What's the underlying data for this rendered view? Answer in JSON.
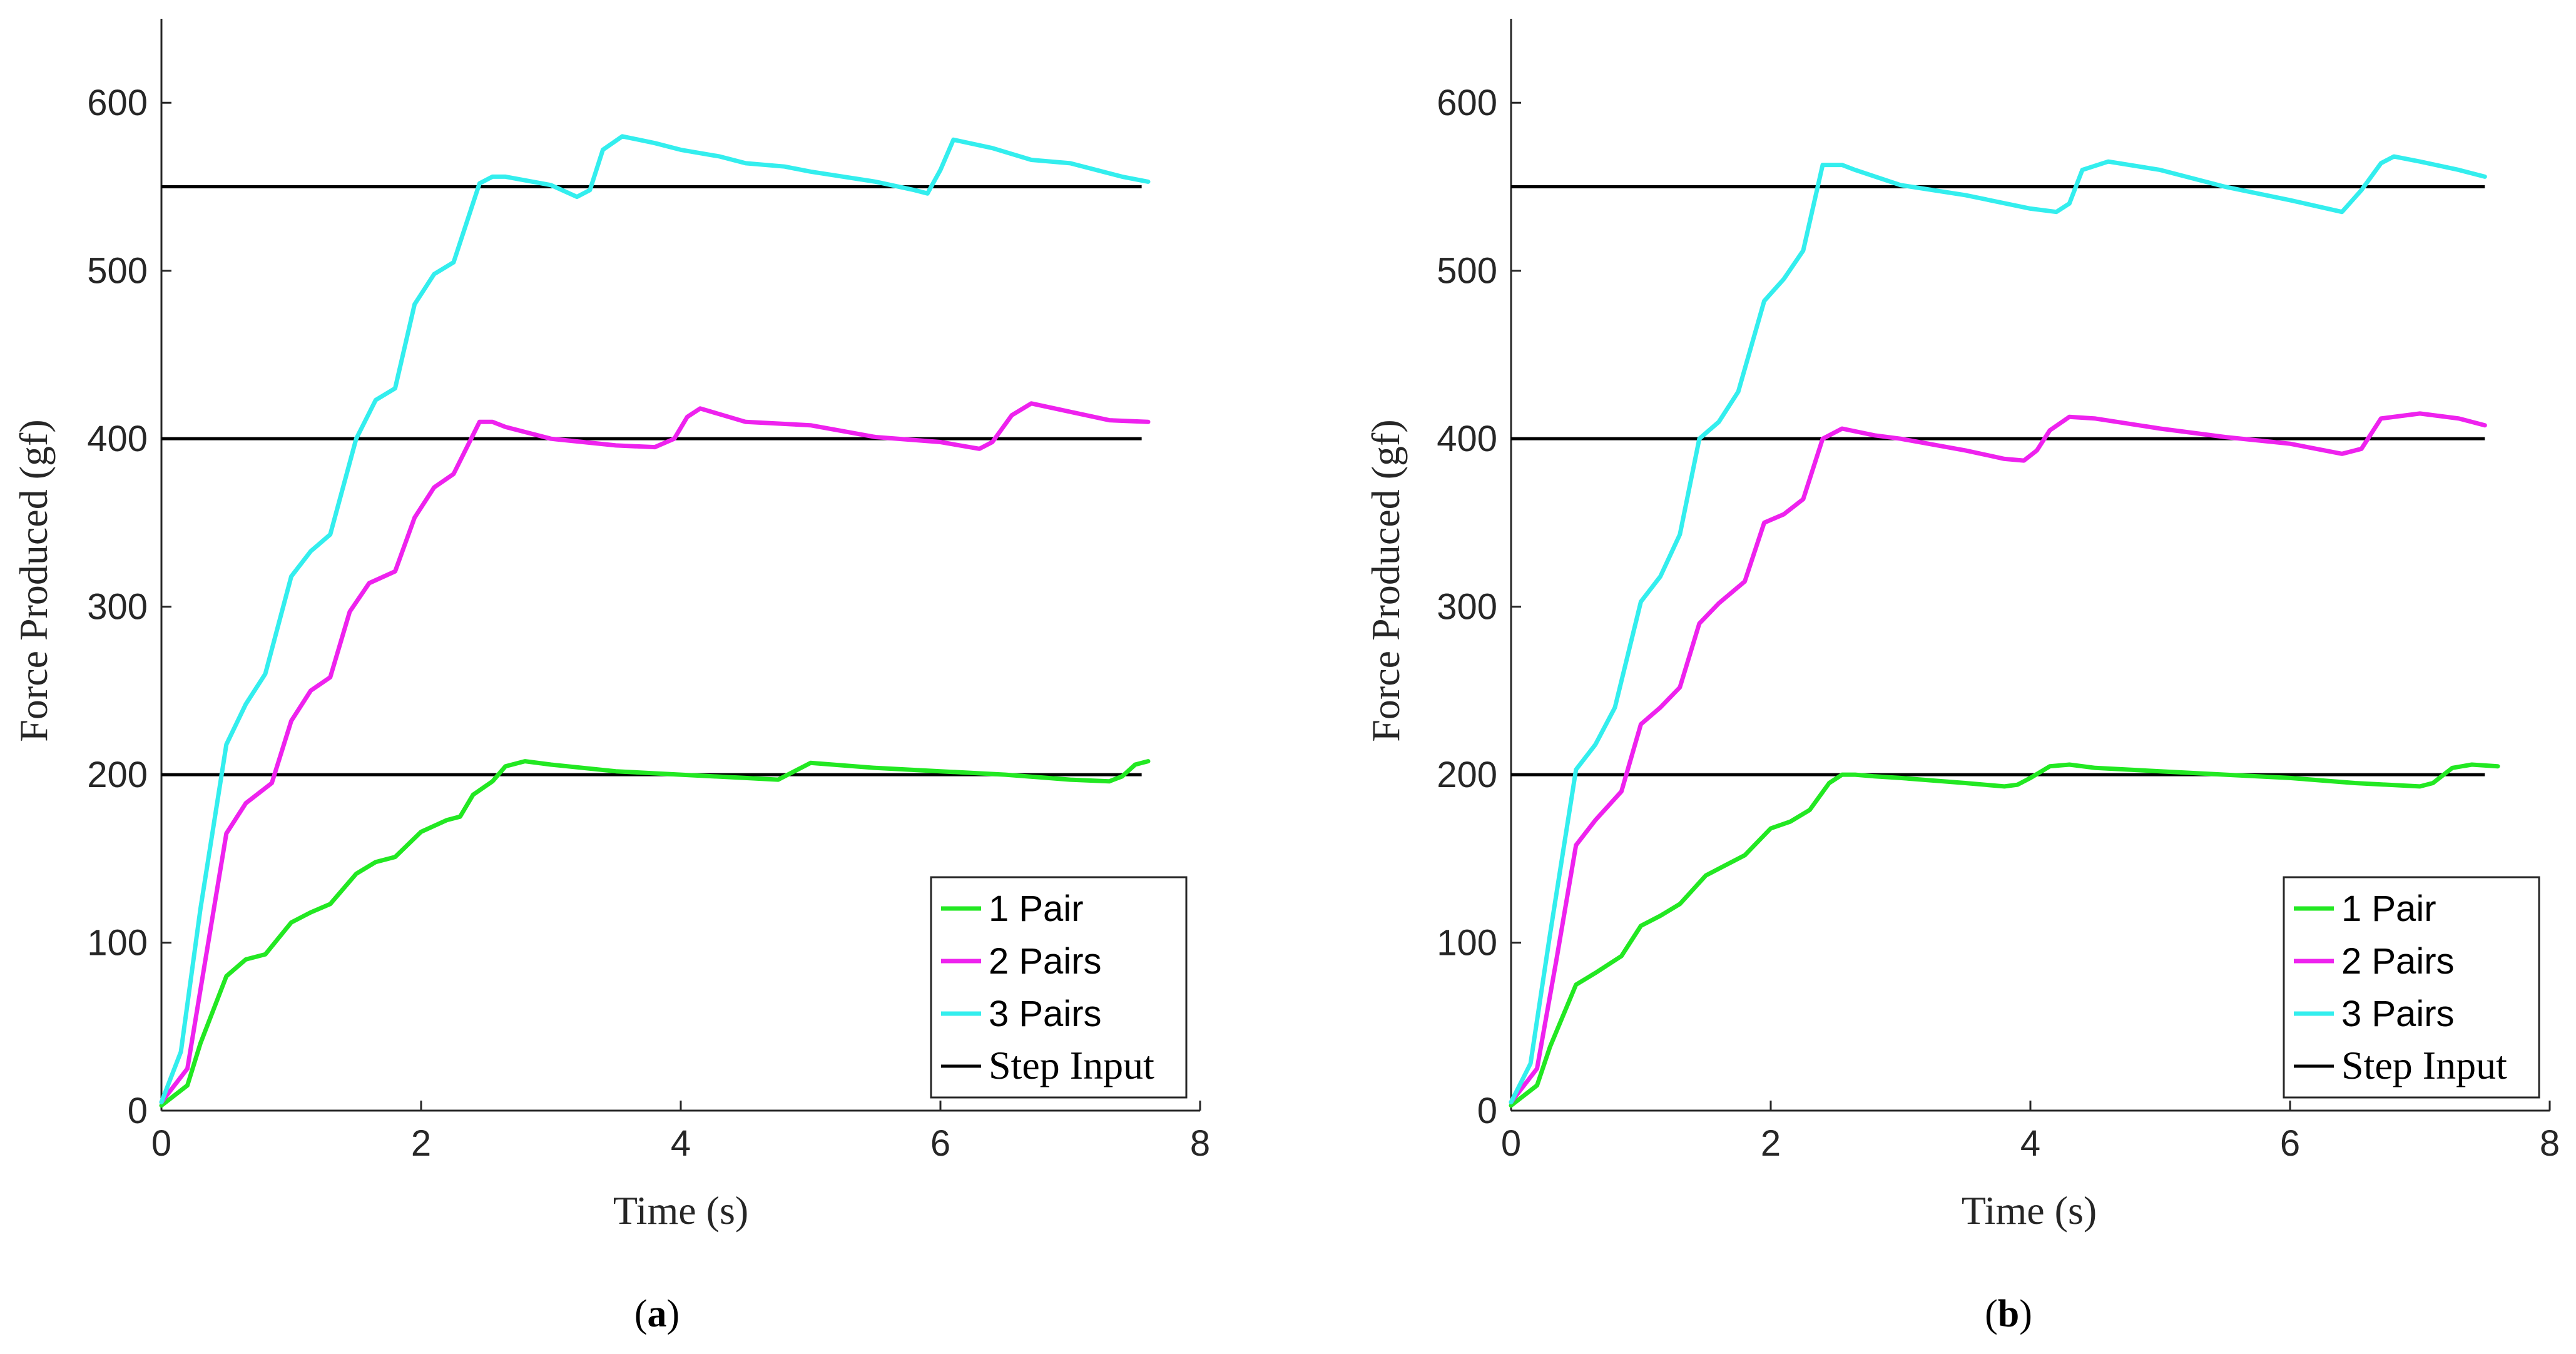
{
  "figure": {
    "colors": {
      "axis": "#262626",
      "step": "#000000",
      "one_pair": "#22e822",
      "two_pairs": "#ee22ee",
      "three_pairs": "#33eeee"
    }
  },
  "chart_data": [
    {
      "type": "line",
      "caption": "(a)",
      "caption_label": "a",
      "xlabel": "Time (s)",
      "ylabel": "Force Produced (gf)",
      "xlim": [
        0,
        8
      ],
      "ylim": [
        0,
        650
      ],
      "xticks": [
        0,
        2,
        4,
        6,
        8
      ],
      "yticks": [
        0,
        100,
        200,
        300,
        400,
        500,
        600
      ],
      "legend": {
        "position": "bottom-right",
        "entries": [
          "1 Pair",
          "2 Pairs",
          "3 Pairs",
          "Step Input"
        ]
      },
      "series": [
        {
          "name": "1 Pair",
          "color": "#22e822",
          "x": [
            0,
            0.2,
            0.3,
            0.5,
            0.65,
            0.8,
            1.0,
            1.15,
            1.3,
            1.5,
            1.65,
            1.8,
            2.0,
            2.2,
            2.3,
            2.4,
            2.55,
            2.65,
            2.8,
            3.0,
            3.5,
            4.0,
            4.5,
            4.75,
            4.9,
            5.0,
            5.5,
            6.0,
            6.5,
            7.0,
            7.3,
            7.4,
            7.5,
            7.6
          ],
          "y": [
            3,
            15,
            40,
            80,
            90,
            93,
            112,
            118,
            123,
            141,
            148,
            151,
            166,
            173,
            175,
            188,
            196,
            205,
            208,
            206,
            202,
            200,
            198,
            197,
            203,
            207,
            204,
            202,
            200,
            197,
            196,
            199,
            206,
            208
          ]
        },
        {
          "name": "2 Pairs",
          "color": "#ee22ee",
          "x": [
            0,
            0.2,
            0.35,
            0.5,
            0.65,
            0.85,
            1.0,
            1.15,
            1.3,
            1.45,
            1.6,
            1.8,
            1.95,
            2.1,
            2.25,
            2.45,
            2.55,
            2.65,
            3.0,
            3.5,
            3.8,
            3.95,
            4.05,
            4.15,
            4.5,
            5.0,
            5.5,
            6.0,
            6.3,
            6.4,
            6.55,
            6.7,
            7.0,
            7.3,
            7.6
          ],
          "y": [
            5,
            25,
            95,
            165,
            183,
            195,
            232,
            250,
            258,
            297,
            314,
            321,
            353,
            371,
            379,
            410,
            410,
            407,
            400,
            396,
            395,
            400,
            413,
            418,
            410,
            408,
            401,
            398,
            394,
            398,
            414,
            421,
            416,
            411,
            410
          ]
        },
        {
          "name": "3 Pairs",
          "color": "#33eeee",
          "x": [
            0,
            0.15,
            0.3,
            0.5,
            0.65,
            0.8,
            1.0,
            1.15,
            1.3,
            1.5,
            1.65,
            1.8,
            1.95,
            2.1,
            2.25,
            2.45,
            2.55,
            2.65,
            3.0,
            3.2,
            3.3,
            3.4,
            3.55,
            3.8,
            4.0,
            4.3,
            4.5,
            4.8,
            5.0,
            5.5,
            5.8,
            5.9,
            6.0,
            6.1,
            6.4,
            6.7,
            7.0,
            7.4,
            7.6
          ],
          "y": [
            5,
            35,
            120,
            218,
            242,
            260,
            318,
            333,
            343,
            400,
            423,
            430,
            480,
            498,
            505,
            552,
            556,
            556,
            551,
            544,
            548,
            572,
            580,
            576,
            572,
            568,
            564,
            562,
            559,
            553,
            548,
            546,
            560,
            578,
            573,
            566,
            564,
            556,
            553
          ]
        }
      ],
      "step_inputs": [
        200,
        400,
        550
      ],
      "step_x_end": 7.55
    },
    {
      "type": "line",
      "caption": "(b)",
      "caption_label": "b",
      "xlabel": "Time (s)",
      "ylabel": "Force Produced (gf)",
      "xlim": [
        0,
        8
      ],
      "ylim": [
        0,
        650
      ],
      "xticks": [
        0,
        2,
        4,
        6,
        8
      ],
      "yticks": [
        0,
        100,
        200,
        300,
        400,
        500,
        600
      ],
      "legend": {
        "position": "bottom-right",
        "entries": [
          "1 Pair",
          "2 Pairs",
          "3 Pairs",
          "Step Input"
        ]
      },
      "series": [
        {
          "name": "1 Pair",
          "color": "#22e822",
          "x": [
            0,
            0.2,
            0.3,
            0.5,
            0.65,
            0.85,
            1.0,
            1.15,
            1.3,
            1.5,
            1.65,
            1.8,
            2.0,
            2.15,
            2.3,
            2.45,
            2.55,
            2.65,
            2.8,
            3.0,
            3.5,
            3.8,
            3.9,
            4.0,
            4.15,
            4.3,
            4.5,
            5.0,
            5.5,
            6.0,
            6.5,
            7.0,
            7.1,
            7.25,
            7.4,
            7.6
          ],
          "y": [
            3,
            15,
            38,
            75,
            82,
            92,
            110,
            116,
            123,
            140,
            146,
            152,
            168,
            172,
            179,
            195,
            200,
            200,
            199,
            198,
            195,
            193,
            194,
            198,
            205,
            206,
            204,
            202,
            200,
            198,
            195,
            193,
            195,
            204,
            206,
            205
          ]
        },
        {
          "name": "2 Pairs",
          "color": "#ee22ee",
          "x": [
            0,
            0.2,
            0.35,
            0.5,
            0.65,
            0.85,
            1.0,
            1.15,
            1.3,
            1.45,
            1.6,
            1.8,
            1.95,
            2.1,
            2.25,
            2.4,
            2.55,
            2.8,
            3.0,
            3.5,
            3.8,
            3.95,
            4.05,
            4.15,
            4.3,
            4.5,
            5.0,
            5.5,
            6.0,
            6.4,
            6.55,
            6.7,
            7.0,
            7.3,
            7.5
          ],
          "y": [
            5,
            25,
            90,
            158,
            173,
            190,
            230,
            240,
            252,
            290,
            302,
            315,
            350,
            355,
            364,
            400,
            406,
            402,
            400,
            393,
            388,
            387,
            393,
            405,
            413,
            412,
            406,
            401,
            397,
            391,
            394,
            412,
            415,
            412,
            408
          ]
        },
        {
          "name": "3 Pairs",
          "color": "#33eeee",
          "x": [
            0,
            0.15,
            0.3,
            0.5,
            0.65,
            0.8,
            1.0,
            1.15,
            1.3,
            1.45,
            1.6,
            1.75,
            1.95,
            2.1,
            2.25,
            2.4,
            2.55,
            2.65,
            3.0,
            3.5,
            4.0,
            4.2,
            4.3,
            4.4,
            4.6,
            5.0,
            5.5,
            6.0,
            6.4,
            6.55,
            6.7,
            6.8,
            7.0,
            7.3,
            7.5
          ],
          "y": [
            5,
            28,
            105,
            203,
            218,
            240,
            303,
            318,
            343,
            400,
            410,
            428,
            482,
            495,
            512,
            563,
            563,
            560,
            551,
            545,
            537,
            535,
            540,
            560,
            565,
            560,
            550,
            542,
            535,
            548,
            564,
            568,
            565,
            560,
            556
          ]
        }
      ],
      "step_inputs": [
        200,
        400,
        550
      ],
      "step_x_end": 7.5
    }
  ]
}
